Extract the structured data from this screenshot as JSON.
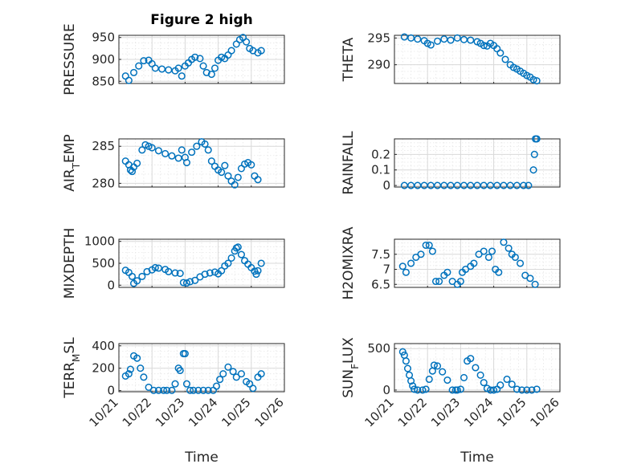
{
  "figure": {
    "title": "Figure 2 high",
    "xlabel": "Time",
    "xticks": [
      "10/21",
      "10/22",
      "10/23",
      "10/24",
      "10/25",
      "10/26"
    ],
    "xlim": [
      0,
      5
    ],
    "marker_color": "#0072bd"
  },
  "chart_data": [
    {
      "type": "scatter",
      "ylabel": "PRESSURE",
      "ylim": [
        845,
        955
      ],
      "yticks": [
        850,
        900,
        950
      ],
      "x": [
        0.2,
        0.3,
        0.45,
        0.6,
        0.75,
        0.9,
        1.0,
        1.1,
        1.3,
        1.5,
        1.7,
        1.8,
        1.9,
        2.0,
        2.1,
        2.2,
        2.3,
        2.45,
        2.55,
        2.65,
        2.8,
        2.9,
        3.0,
        3.1,
        3.2,
        3.3,
        3.4,
        3.55,
        3.65,
        3.75,
        3.85,
        3.95,
        4.05,
        4.2,
        4.3
      ],
      "y": [
        862,
        852,
        870,
        885,
        897,
        898,
        890,
        880,
        878,
        876,
        874,
        880,
        862,
        885,
        892,
        900,
        905,
        902,
        885,
        870,
        866,
        880,
        898,
        905,
        902,
        910,
        920,
        935,
        945,
        950,
        940,
        925,
        920,
        915,
        920
      ]
    },
    {
      "type": "scatter",
      "ylabel": "THETA",
      "ylim": [
        286.5,
        295.5
      ],
      "yticks": [
        290,
        295
      ],
      "x": [
        0.3,
        0.5,
        0.7,
        0.9,
        1.0,
        1.1,
        1.3,
        1.5,
        1.7,
        1.9,
        2.1,
        2.3,
        2.5,
        2.6,
        2.7,
        2.8,
        2.9,
        3.0,
        3.1,
        3.2,
        3.35,
        3.5,
        3.6,
        3.7,
        3.8,
        3.9,
        4.0,
        4.1,
        4.2,
        4.3
      ],
      "y": [
        295.2,
        295.0,
        294.8,
        294.5,
        294.0,
        293.7,
        294.4,
        294.8,
        294.6,
        295.0,
        294.7,
        294.6,
        294.3,
        294.0,
        293.6,
        293.5,
        294.0,
        293.6,
        293.0,
        292.2,
        291.0,
        290.0,
        289.5,
        289.2,
        288.8,
        288.4,
        288.0,
        287.7,
        287.2,
        287.0
      ]
    },
    {
      "type": "scatter",
      "ylabel": "AIR_TEMP",
      "ylim": [
        279.5,
        286
      ],
      "yticks": [
        280,
        285
      ],
      "x": [
        0.2,
        0.3,
        0.35,
        0.4,
        0.45,
        0.55,
        0.7,
        0.8,
        0.9,
        1.0,
        1.2,
        1.4,
        1.6,
        1.8,
        1.9,
        2.0,
        2.05,
        2.2,
        2.35,
        2.5,
        2.6,
        2.7,
        2.8,
        2.9,
        3.0,
        3.1,
        3.2,
        3.3,
        3.4,
        3.5,
        3.6,
        3.7,
        3.8,
        3.9,
        4.0,
        4.1,
        4.2
      ],
      "y": [
        283.0,
        282.5,
        281.8,
        281.6,
        282.2,
        282.7,
        284.5,
        285.2,
        285.0,
        284.8,
        284.4,
        284.0,
        283.7,
        283.4,
        284.5,
        283.5,
        282.8,
        284.2,
        285.0,
        285.6,
        285.3,
        284.5,
        283.0,
        282.3,
        281.8,
        281.5,
        282.4,
        281.0,
        280.3,
        279.8,
        280.8,
        282.0,
        282.6,
        282.8,
        282.5,
        281.0,
        280.5
      ]
    },
    {
      "type": "scatter",
      "ylabel": "RAINFALL",
      "ylim": [
        -0.01,
        0.3
      ],
      "yticks": [
        0,
        0.1,
        0.2
      ],
      "x": [
        0.3,
        0.5,
        0.7,
        0.9,
        1.1,
        1.3,
        1.5,
        1.7,
        1.9,
        2.1,
        2.3,
        2.5,
        2.7,
        2.9,
        3.1,
        3.3,
        3.5,
        3.7,
        3.9,
        4.05,
        4.2,
        4.23,
        4.26,
        4.3
      ],
      "y": [
        0,
        0,
        0,
        0,
        0,
        0,
        0,
        0,
        0,
        0,
        0,
        0,
        0,
        0,
        0,
        0,
        0,
        0,
        0,
        0,
        0.1,
        0.2,
        0.3,
        0.3
      ]
    },
    {
      "type": "scatter",
      "ylabel": "MIXDEPTH",
      "ylim": [
        -50,
        1050
      ],
      "yticks": [
        0,
        500,
        1000
      ],
      "x": [
        0.2,
        0.3,
        0.4,
        0.45,
        0.55,
        0.7,
        0.85,
        1.0,
        1.1,
        1.2,
        1.4,
        1.5,
        1.7,
        1.85,
        1.95,
        2.05,
        2.15,
        2.3,
        2.45,
        2.6,
        2.75,
        2.9,
        3.0,
        3.1,
        3.2,
        3.3,
        3.4,
        3.5,
        3.55,
        3.6,
        3.7,
        3.8,
        3.9,
        4.0,
        4.1,
        4.15,
        4.2,
        4.3
      ],
      "y": [
        340,
        290,
        200,
        40,
        100,
        200,
        310,
        350,
        400,
        390,
        360,
        310,
        280,
        270,
        60,
        50,
        80,
        110,
        190,
        250,
        280,
        300,
        260,
        330,
        440,
        500,
        620,
        780,
        850,
        870,
        700,
        560,
        480,
        400,
        320,
        250,
        330,
        500
      ]
    },
    {
      "type": "scatter",
      "ylabel": "H2OMIXRA",
      "ylim": [
        6.4,
        8
      ],
      "yticks": [
        6.5,
        7,
        7.5
      ],
      "x": [
        0.25,
        0.35,
        0.5,
        0.65,
        0.8,
        0.95,
        1.05,
        1.15,
        1.25,
        1.35,
        1.5,
        1.6,
        1.75,
        1.9,
        2.0,
        2.05,
        2.15,
        2.3,
        2.4,
        2.55,
        2.7,
        2.85,
        2.95,
        3.05,
        3.15,
        3.3,
        3.45,
        3.55,
        3.65,
        3.8,
        3.95,
        4.1,
        4.25
      ],
      "y": [
        7.1,
        6.9,
        7.2,
        7.4,
        7.5,
        7.8,
        7.8,
        7.6,
        6.6,
        6.6,
        6.8,
        6.9,
        6.6,
        6.5,
        6.6,
        6.9,
        7.0,
        7.1,
        7.2,
        7.5,
        7.6,
        7.4,
        7.6,
        7.0,
        6.9,
        7.9,
        7.7,
        7.5,
        7.4,
        7.2,
        6.8,
        6.7,
        6.5
      ]
    },
    {
      "type": "scatter",
      "ylabel": "TERR_MSL",
      "ylim": [
        -10,
        420
      ],
      "yticks": [
        0,
        200,
        400
      ],
      "x": [
        0.2,
        0.3,
        0.35,
        0.45,
        0.55,
        0.65,
        0.75,
        0.9,
        1.05,
        1.2,
        1.35,
        1.45,
        1.6,
        1.7,
        1.8,
        1.85,
        1.95,
        2.0,
        2.05,
        2.15,
        2.25,
        2.4,
        2.55,
        2.7,
        2.85,
        2.95,
        3.05,
        3.15,
        3.3,
        3.45,
        3.55,
        3.7,
        3.85,
        3.95,
        4.05,
        4.2,
        4.3
      ],
      "y": [
        130,
        150,
        190,
        310,
        290,
        200,
        120,
        30,
        2,
        2,
        2,
        2,
        2,
        60,
        200,
        180,
        330,
        330,
        60,
        2,
        2,
        2,
        2,
        2,
        2,
        40,
        100,
        150,
        210,
        170,
        120,
        150,
        80,
        60,
        20,
        120,
        150
      ]
    },
    {
      "type": "scatter",
      "ylabel": "SUN_FLUX",
      "ylim": [
        -20,
        560
      ],
      "yticks": [
        0,
        500
      ],
      "x": [
        0.25,
        0.3,
        0.35,
        0.4,
        0.45,
        0.5,
        0.55,
        0.6,
        0.7,
        0.85,
        0.95,
        1.05,
        1.15,
        1.2,
        1.3,
        1.45,
        1.6,
        1.75,
        1.85,
        1.9,
        2.0,
        2.1,
        2.2,
        2.3,
        2.45,
        2.6,
        2.7,
        2.8,
        2.9,
        3.0,
        3.1,
        3.2,
        3.4,
        3.55,
        3.7,
        3.85,
        4.0,
        4.15,
        4.3
      ],
      "y": [
        460,
        420,
        350,
        260,
        180,
        110,
        50,
        10,
        0,
        0,
        10,
        130,
        230,
        300,
        290,
        220,
        120,
        0,
        0,
        0,
        10,
        150,
        350,
        380,
        270,
        180,
        90,
        20,
        0,
        0,
        10,
        60,
        130,
        70,
        10,
        0,
        0,
        0,
        10
      ]
    }
  ]
}
